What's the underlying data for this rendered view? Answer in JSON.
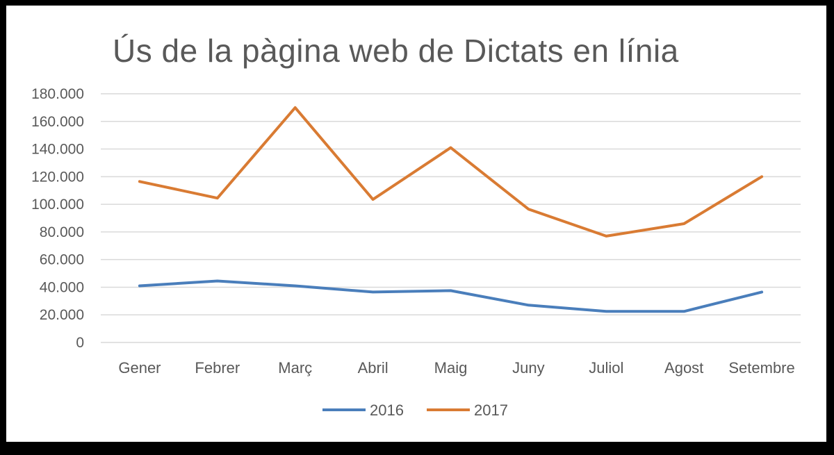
{
  "chart_data": {
    "type": "line",
    "title": "Ús de la pàgina web de Dictats en línia",
    "xlabel": "",
    "ylabel": "",
    "categories": [
      "Gener",
      "Febrer",
      "Març",
      "Abril",
      "Maig",
      "Juny",
      "Juliol",
      "Agost",
      "Setembre"
    ],
    "series": [
      {
        "name": "2016",
        "color": "#4a7ebb",
        "values": [
          41000,
          44500,
          41000,
          36500,
          37500,
          27000,
          22500,
          22500,
          36500
        ]
      },
      {
        "name": "2017",
        "color": "#d97b33",
        "values": [
          116500,
          104500,
          170000,
          103500,
          141000,
          96500,
          77000,
          86000,
          120000
        ]
      }
    ],
    "ylim": [
      0,
      180000
    ],
    "y_ticks": [
      0,
      20000,
      40000,
      60000,
      80000,
      100000,
      120000,
      140000,
      160000,
      180000
    ],
    "y_tick_labels": [
      "0",
      "20.000",
      "40.000",
      "60.000",
      "80.000",
      "100.000",
      "120.000",
      "140.000",
      "160.000",
      "180.000"
    ],
    "grid": true,
    "legend_position": "bottom"
  }
}
